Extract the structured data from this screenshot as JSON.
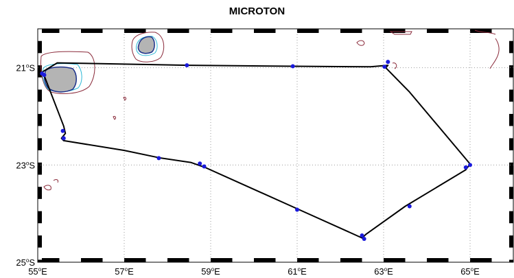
{
  "title": "MICROTON",
  "axes": {
    "lon_ticks": [
      {
        "value": 55,
        "label": "55",
        "suffix": "E"
      },
      {
        "value": 57,
        "label": "57",
        "suffix": "E"
      },
      {
        "value": 59,
        "label": "59",
        "suffix": "E"
      },
      {
        "value": 61,
        "label": "61",
        "suffix": "E"
      },
      {
        "value": 63,
        "label": "63",
        "suffix": "E"
      },
      {
        "value": 65,
        "label": "65",
        "suffix": "E"
      }
    ],
    "lat_ticks": [
      {
        "value": -21,
        "label": "21",
        "suffix": "S"
      },
      {
        "value": -23,
        "label": "23",
        "suffix": "S"
      },
      {
        "value": -25,
        "label": "25",
        "suffix": "S"
      }
    ],
    "degree_symbol": "o",
    "lon_range": [
      55,
      66
    ],
    "lat_range": [
      -25,
      -20.2
    ],
    "grid": true,
    "grid_style": "dotted"
  },
  "colors": {
    "track": "#000000",
    "stations": "#1a1adc",
    "land": "#b4b4b4",
    "contour_outer": "#8a2a3a",
    "contour_mid": "#2db8d6",
    "contour_inner": "#1a2f8a"
  },
  "islands": [
    {
      "name": "",
      "lon": 55.5,
      "lat": -21.15
    },
    {
      "name": "",
      "lon": 57.55,
      "lat": -20.3
    }
  ],
  "cruise_track": [
    [
      55.08,
      -21.1
    ],
    [
      55.14,
      -21.14
    ],
    [
      55.6,
      -22.2
    ],
    [
      55.64,
      -22.35
    ],
    [
      55.55,
      -22.45
    ],
    [
      55.6,
      -22.5
    ],
    [
      57.0,
      -22.7
    ],
    [
      57.8,
      -22.85
    ],
    [
      58.55,
      -22.95
    ],
    [
      58.87,
      -23.05
    ],
    [
      61.0,
      -23.9
    ],
    [
      62.5,
      -24.5
    ],
    [
      62.6,
      -24.42
    ],
    [
      63.5,
      -23.85
    ],
    [
      64.9,
      -23.1
    ],
    [
      65.0,
      -22.98
    ],
    [
      63.6,
      -21.5
    ],
    [
      63.05,
      -21.0
    ],
    [
      63.1,
      -20.95
    ],
    [
      62.7,
      -20.98
    ],
    [
      60.9,
      -20.97
    ],
    [
      58.5,
      -20.95
    ],
    [
      55.45,
      -20.9
    ],
    [
      55.08,
      -21.1
    ]
  ],
  "stations": [
    [
      55.1,
      -21.12
    ],
    [
      55.15,
      -21.15
    ],
    [
      55.58,
      -22.3
    ],
    [
      55.6,
      -22.45
    ],
    [
      57.8,
      -22.86
    ],
    [
      58.75,
      -22.97
    ],
    [
      58.85,
      -23.03
    ],
    [
      61.0,
      -23.92
    ],
    [
      62.5,
      -24.45
    ],
    [
      62.55,
      -24.52
    ],
    [
      63.6,
      -23.85
    ],
    [
      64.9,
      -23.05
    ],
    [
      65.0,
      -23.0
    ],
    [
      63.1,
      -20.88
    ],
    [
      63.02,
      -20.98
    ],
    [
      60.9,
      -20.97
    ],
    [
      58.45,
      -20.95
    ]
  ]
}
